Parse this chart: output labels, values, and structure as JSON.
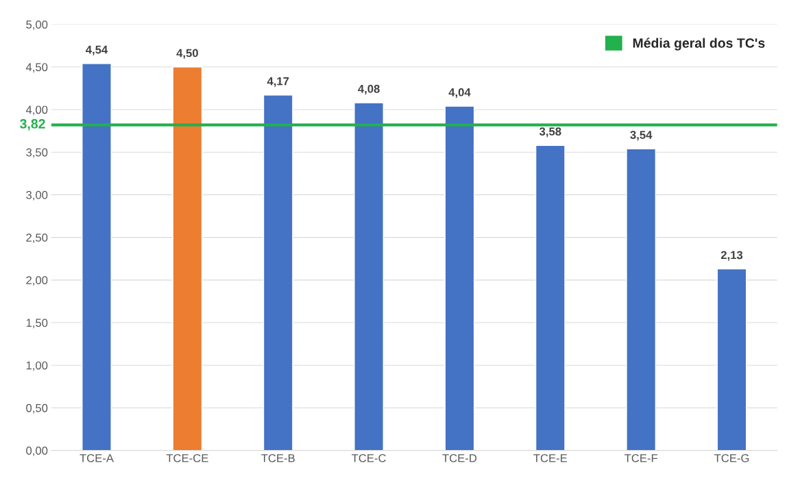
{
  "chart_data": {
    "type": "bar",
    "categories": [
      "TCE-A",
      "TCE-CE",
      "TCE-B",
      "TCE-C",
      "TCE-D",
      "TCE-E",
      "TCE-F",
      "TCE-G"
    ],
    "values": [
      4.54,
      4.5,
      4.17,
      4.08,
      4.04,
      3.58,
      3.54,
      2.13
    ],
    "colors": [
      "#4472c4",
      "#ed7d31",
      "#4472c4",
      "#4472c4",
      "#4472c4",
      "#4472c4",
      "#4472c4",
      "#4472c4"
    ],
    "value_labels": [
      "4,54",
      "4,50",
      "4,17",
      "4,08",
      "4,04",
      "3,58",
      "3,54",
      "2,13"
    ],
    "ylim": [
      0,
      5
    ],
    "yticks": [
      {
        "value": 0,
        "label": "0,00"
      },
      {
        "value": 0.5,
        "label": "0,50"
      },
      {
        "value": 1,
        "label": "1,00"
      },
      {
        "value": 1.5,
        "label": "1,50"
      },
      {
        "value": 2,
        "label": "2,00"
      },
      {
        "value": 2.5,
        "label": "2,50"
      },
      {
        "value": 3,
        "label": "3,00"
      },
      {
        "value": 3.5,
        "label": "3,50"
      },
      {
        "value": 4,
        "label": "4,00"
      },
      {
        "value": 4.5,
        "label": "4,50"
      },
      {
        "value": 5,
        "label": "5,00"
      }
    ],
    "grid": "y",
    "ref_lines": [
      {
        "axis": "y",
        "value": 3.82,
        "label": "Média geral dos TC's",
        "color": "#22b14c"
      }
    ],
    "annotations": [
      "3,82"
    ],
    "legend": "top right"
  }
}
